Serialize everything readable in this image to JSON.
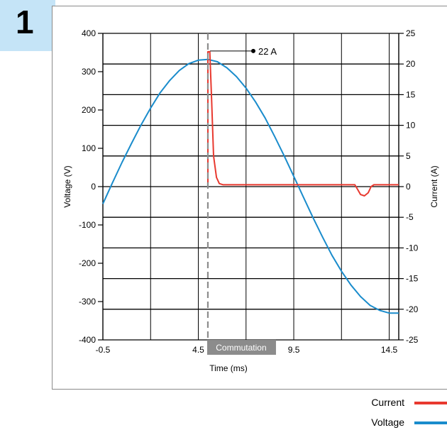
{
  "badge": {
    "number": "1"
  },
  "chart_data": {
    "type": "line",
    "xlabel": "Time (ms)",
    "ylabel_left": "Voltage (V)",
    "ylabel_right": "Current (A)",
    "xlim": [
      -0.5,
      15.0
    ],
    "x_ticks": [
      -0.5,
      4.5,
      9.5,
      14.5
    ],
    "y_left_lim": [
      -400,
      400
    ],
    "y_left_ticks": [
      400,
      300,
      200,
      100,
      0,
      -100,
      -200,
      -300,
      -400
    ],
    "y_right_lim": [
      -25,
      25
    ],
    "y_right_ticks": [
      25,
      20,
      15,
      10,
      5,
      0,
      -5,
      -10,
      -15,
      -20,
      -25
    ],
    "grid": true,
    "commutation_label": "Commutation",
    "commutation_x": 5.0,
    "peak_annotation": "22 A",
    "series": [
      {
        "name": "Voltage",
        "axis": "left",
        "color": "#1a8ccc",
        "x": [
          -0.5,
          0.0,
          0.5,
          1.0,
          1.5,
          2.0,
          2.5,
          3.0,
          3.5,
          4.0,
          4.5,
          5.0,
          5.5,
          6.0,
          6.5,
          7.0,
          7.5,
          8.0,
          8.5,
          9.0,
          9.5,
          10.0,
          10.5,
          11.0,
          11.5,
          12.0,
          12.5,
          13.0,
          13.5,
          14.0,
          14.5,
          15.0
        ],
        "values": [
          -45,
          10,
          63,
          113,
          161,
          205,
          245,
          277,
          303,
          321,
          330,
          332,
          326,
          310,
          287,
          257,
          221,
          179,
          131,
          80,
          27,
          -27,
          -80,
          -131,
          -179,
          -221,
          -257,
          -287,
          -310,
          -323,
          -330,
          -330
        ]
      },
      {
        "name": "Current",
        "axis": "right",
        "color": "#e8392f",
        "x": [
          5.0,
          5.0,
          5.1,
          5.2,
          5.3,
          5.45,
          5.6,
          5.8,
          6.0,
          12.7,
          12.85,
          13.0,
          13.2,
          13.4,
          13.55,
          13.7,
          15.0
        ],
        "values": [
          0,
          22,
          22,
          14,
          5,
          1.5,
          0.5,
          0.3,
          0.3,
          0.3,
          -0.5,
          -1.3,
          -1.5,
          -1.0,
          0.0,
          0.3,
          0.3
        ]
      }
    ]
  },
  "legend": [
    {
      "label": "Current",
      "color": "#e8392f"
    },
    {
      "label": "Voltage",
      "color": "#1a8ccc"
    }
  ]
}
